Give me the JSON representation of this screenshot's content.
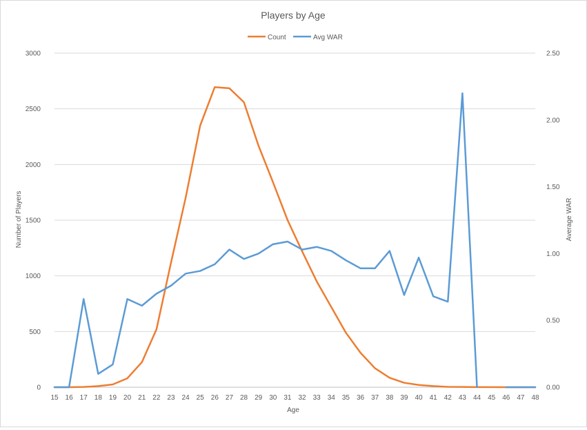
{
  "chart_data": {
    "type": "line",
    "title": "Players by Age",
    "xlabel": "Age",
    "ylabel": "Number of Players",
    "y2label": "Average WAR",
    "categories": [
      "15",
      "16",
      "17",
      "18",
      "19",
      "20",
      "21",
      "22",
      "23",
      "24",
      "25",
      "26",
      "27",
      "28",
      "29",
      "30",
      "31",
      "32",
      "33",
      "34",
      "35",
      "36",
      "37",
      "38",
      "39",
      "40",
      "41",
      "42",
      "43",
      "44",
      "45",
      "46",
      "47",
      "48"
    ],
    "ylim": [
      0,
      3000
    ],
    "yticks": [
      "0",
      "500",
      "1000",
      "1500",
      "2000",
      "2500",
      "3000"
    ],
    "y2lim": [
      0,
      2.5
    ],
    "y2ticks": [
      "0.00",
      "0.50",
      "1.00",
      "1.50",
      "2.00",
      "2.50"
    ],
    "grid": true,
    "legend_position": "top",
    "series": [
      {
        "name": "Count",
        "axis": "left",
        "color": "#ed7d31",
        "values": [
          0,
          0,
          2,
          10,
          25,
          80,
          225,
          520,
          1120,
          1700,
          2350,
          2695,
          2685,
          2560,
          2170,
          1840,
          1500,
          1220,
          950,
          720,
          490,
          310,
          170,
          85,
          40,
          20,
          10,
          3,
          2,
          1,
          1,
          0,
          0,
          0
        ]
      },
      {
        "name": "Avg WAR",
        "axis": "right",
        "color": "#5b9bd5",
        "values": [
          0,
          0,
          0.66,
          0.1,
          0.17,
          0.66,
          0.61,
          0.7,
          0.76,
          0.85,
          0.87,
          0.92,
          1.03,
          0.96,
          1.0,
          1.07,
          1.09,
          1.03,
          1.05,
          1.02,
          0.95,
          0.89,
          0.89,
          1.02,
          0.69,
          0.97,
          0.68,
          0.64,
          2.2,
          0,
          null,
          0,
          0,
          0
        ]
      }
    ]
  }
}
